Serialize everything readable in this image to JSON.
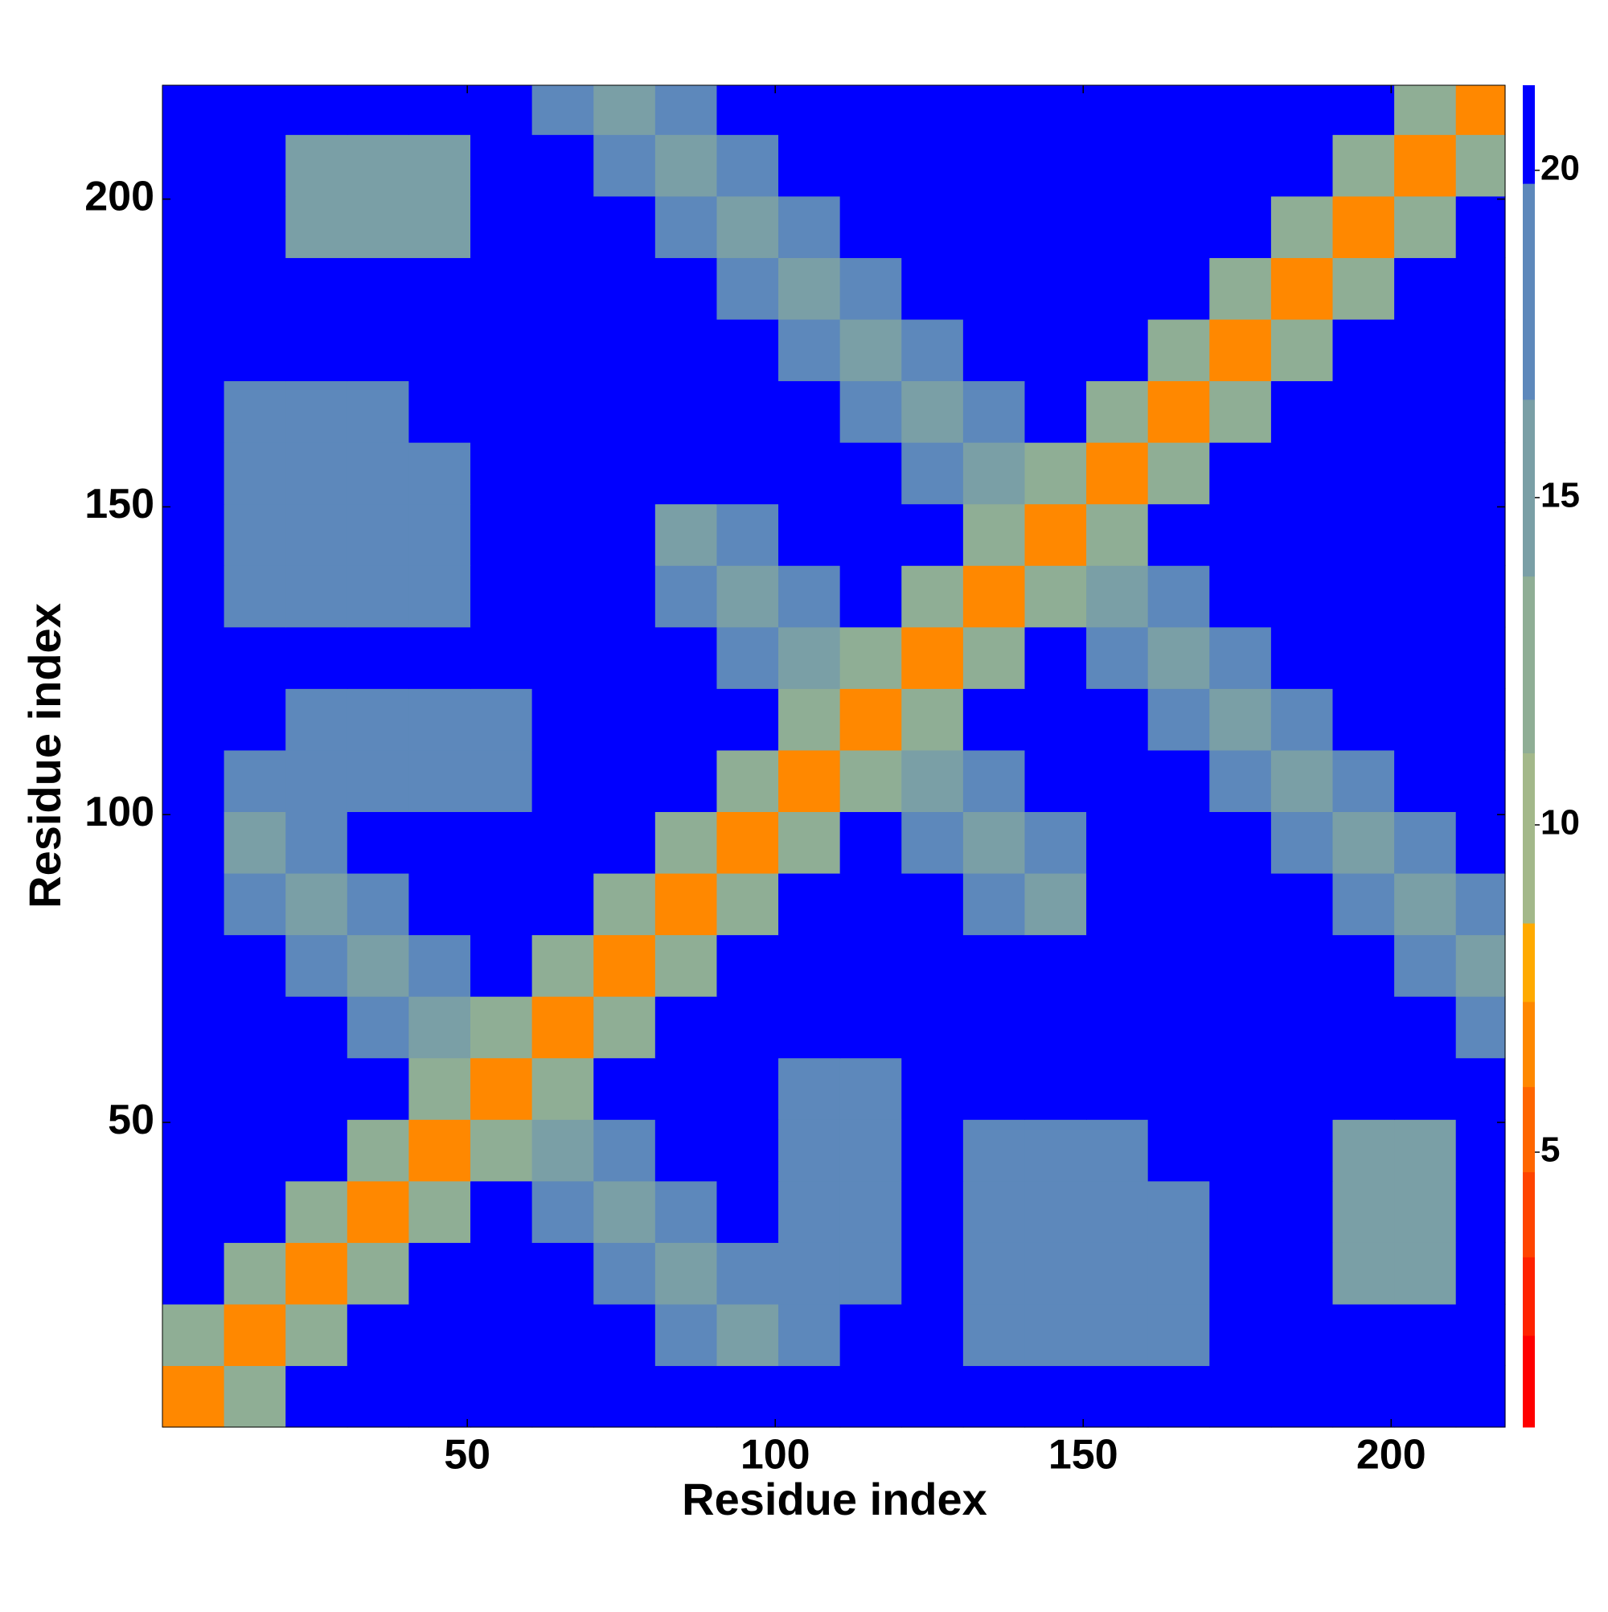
{
  "chart_data": {
    "type": "heatmap",
    "xlabel": "Residue index",
    "ylabel": "Residue index",
    "xlim": [
      0.5,
      218.5
    ],
    "ylim": [
      0.5,
      218.5
    ],
    "xticks": [
      50,
      100,
      150,
      200
    ],
    "yticks": [
      50,
      100,
      150,
      200
    ],
    "xbins": [
      0.5,
      10.5,
      20.5,
      30.5,
      40.5,
      50.5,
      60.5,
      70.5,
      80.5,
      90.5,
      100.5,
      110.5,
      120.5,
      130.5,
      140.5,
      150.5,
      160.5,
      170.5,
      180.5,
      190.5,
      200.5,
      210.5,
      218.5
    ],
    "ybins": [
      0.5,
      10.5,
      20.5,
      30.5,
      40.5,
      50.5,
      60.5,
      70.5,
      80.5,
      90.5,
      100.5,
      110.5,
      120.5,
      130.5,
      140.5,
      150.5,
      160.5,
      170.5,
      180.5,
      190.5,
      200.5,
      210.5,
      218.5
    ],
    "z": [
      [
        6,
        12,
        21,
        21,
        21,
        21,
        21,
        21,
        21,
        21,
        21,
        21,
        21,
        21,
        21,
        21,
        21,
        21,
        21,
        21,
        21,
        21
      ],
      [
        12,
        6,
        12,
        21,
        21,
        21,
        21,
        21,
        17,
        14,
        17,
        21,
        21,
        17,
        17,
        17,
        17,
        21,
        21,
        21,
        21,
        21
      ],
      [
        21,
        12,
        6,
        12,
        21,
        21,
        21,
        17,
        14,
        17,
        17,
        17,
        21,
        17,
        17,
        17,
        17,
        21,
        21,
        16,
        16,
        21
      ],
      [
        21,
        21,
        12,
        6,
        12,
        21,
        17,
        14,
        17,
        21,
        17,
        17,
        21,
        17,
        17,
        17,
        17,
        21,
        21,
        16,
        16,
        21
      ],
      [
        21,
        21,
        21,
        12,
        6,
        12,
        14,
        17,
        21,
        21,
        17,
        17,
        21,
        17,
        17,
        17,
        21,
        21,
        21,
        16,
        16,
        21
      ],
      [
        21,
        21,
        21,
        21,
        12,
        6,
        12,
        21,
        21,
        21,
        17,
        17,
        21,
        21,
        21,
        21,
        21,
        21,
        21,
        21,
        21,
        21
      ],
      [
        21,
        21,
        21,
        17,
        14,
        12,
        6,
        12,
        21,
        21,
        21,
        21,
        21,
        21,
        21,
        21,
        21,
        21,
        21,
        21,
        21,
        17
      ],
      [
        21,
        21,
        17,
        14,
        17,
        21,
        12,
        6,
        12,
        21,
        21,
        21,
        21,
        21,
        21,
        21,
        21,
        21,
        21,
        21,
        17,
        15
      ],
      [
        21,
        17,
        14,
        17,
        21,
        21,
        21,
        12,
        6,
        12,
        21,
        21,
        21,
        17,
        14,
        21,
        21,
        21,
        21,
        17,
        15,
        17
      ],
      [
        21,
        14,
        17,
        21,
        21,
        21,
        21,
        21,
        12,
        6,
        12,
        21,
        17,
        14,
        17,
        21,
        21,
        21,
        17,
        15,
        17,
        21
      ],
      [
        21,
        17,
        17,
        17,
        17,
        17,
        21,
        21,
        21,
        12,
        6,
        12,
        14,
        17,
        21,
        21,
        21,
        17,
        15,
        17,
        21,
        21
      ],
      [
        21,
        21,
        17,
        17,
        17,
        17,
        21,
        21,
        21,
        21,
        12,
        6,
        12,
        21,
        21,
        21,
        17,
        15,
        17,
        21,
        21,
        21
      ],
      [
        21,
        21,
        21,
        21,
        21,
        21,
        21,
        21,
        21,
        17,
        14,
        12,
        6,
        12,
        21,
        17,
        15,
        17,
        21,
        21,
        21,
        21
      ],
      [
        21,
        17,
        17,
        17,
        17,
        21,
        21,
        21,
        17,
        14,
        17,
        21,
        12,
        6,
        12,
        15,
        17,
        21,
        21,
        21,
        21,
        21
      ],
      [
        21,
        17,
        17,
        17,
        17,
        21,
        21,
        21,
        14,
        17,
        21,
        21,
        21,
        12,
        6,
        12,
        21,
        21,
        21,
        21,
        21,
        21
      ],
      [
        21,
        17,
        17,
        17,
        17,
        21,
        21,
        21,
        21,
        21,
        21,
        21,
        17,
        15,
        12,
        6,
        12,
        21,
        21,
        21,
        21,
        21
      ],
      [
        21,
        17,
        17,
        17,
        21,
        21,
        21,
        21,
        21,
        21,
        21,
        17,
        15,
        17,
        21,
        12,
        6,
        12,
        21,
        21,
        21,
        21
      ],
      [
        21,
        21,
        21,
        21,
        21,
        21,
        21,
        21,
        21,
        21,
        17,
        15,
        17,
        21,
        21,
        21,
        12,
        6,
        12,
        21,
        21,
        21
      ],
      [
        21,
        21,
        21,
        21,
        21,
        21,
        21,
        21,
        21,
        17,
        15,
        17,
        21,
        21,
        21,
        21,
        21,
        12,
        6,
        12,
        21,
        21
      ],
      [
        21,
        21,
        16,
        16,
        16,
        21,
        21,
        21,
        17,
        15,
        17,
        21,
        21,
        21,
        21,
        21,
        21,
        21,
        12,
        6,
        12,
        21
      ],
      [
        21,
        21,
        16,
        16,
        16,
        21,
        21,
        17,
        15,
        17,
        21,
        21,
        21,
        21,
        21,
        21,
        21,
        21,
        21,
        12,
        6,
        12
      ],
      [
        21,
        21,
        21,
        21,
        21,
        21,
        17,
        15,
        17,
        21,
        21,
        21,
        21,
        21,
        21,
        21,
        21,
        21,
        21,
        21,
        12,
        6
      ]
    ],
    "colorbar": {
      "levels": [
        0.8,
        2.2,
        3.4,
        4.7,
        6,
        7.3,
        8.5,
        11.1,
        13.8,
        16.5,
        19.8,
        21.3
      ],
      "colors": [
        "#ff0000",
        "#ff2200",
        "#ff4400",
        "#ff6600",
        "#ff8800",
        "#ffaa00",
        "#a3b88a",
        "#8fae95",
        "#7a9fa6",
        "#5d88bb",
        "#0000ff"
      ],
      "ticks": [
        5,
        10,
        15,
        20
      ]
    }
  }
}
